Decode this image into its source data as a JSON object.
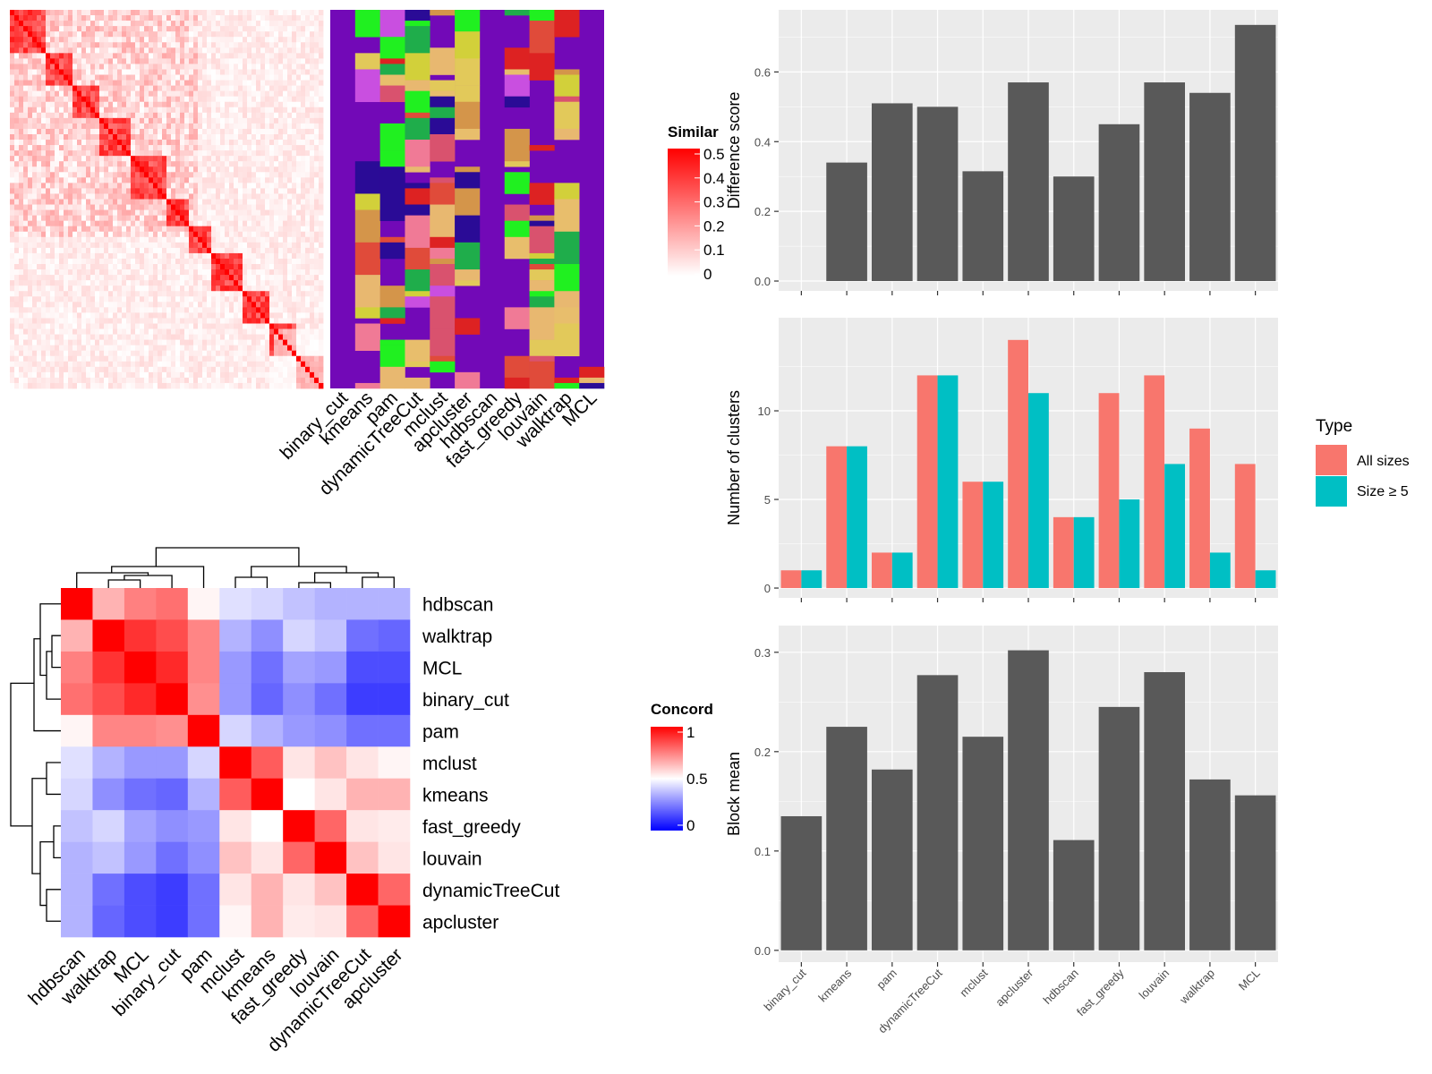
{
  "methods": [
    "binary_cut",
    "kmeans",
    "pam",
    "dynamicTreeCut",
    "mclust",
    "apcluster",
    "hdbscan",
    "fast_greedy",
    "louvain",
    "walktrap",
    "MCL"
  ],
  "similarity_legend": {
    "title": "Similar",
    "ticks": [
      "0.5",
      "0.4",
      "0.3",
      "0.2",
      "0.1",
      "0"
    ]
  },
  "concordance_legend": {
    "title": "Concord",
    "ticks": [
      "1",
      "0.5",
      "0"
    ]
  },
  "type_legend": {
    "title": "Type",
    "items": [
      {
        "label": "All sizes",
        "color": "#F8766D"
      },
      {
        "label": "Size ≥ 5",
        "color": "#00BFC4"
      }
    ]
  },
  "colors": {
    "bar": "#595959",
    "panel": "#EBEBEB",
    "grid": "#FFFFFF",
    "purple": "#7209B7",
    "red": "#FF0000",
    "blue": "#0000FF"
  },
  "concordance_order": [
    "hdbscan",
    "walktrap",
    "MCL",
    "binary_cut",
    "pam",
    "mclust",
    "kmeans",
    "fast_greedy",
    "louvain",
    "dynamicTreeCut",
    "apcluster"
  ],
  "chart_data": [
    {
      "type": "bar",
      "categories": [
        "binary_cut",
        "kmeans",
        "pam",
        "dynamicTreeCut",
        "mclust",
        "apcluster",
        "hdbscan",
        "fast_greedy",
        "louvain",
        "walktrap",
        "MCL"
      ],
      "values": [
        0,
        0.34,
        0.51,
        0.5,
        0.315,
        0.57,
        0.3,
        0.45,
        0.57,
        0.54,
        0.735
      ],
      "ylabel": "Difference score",
      "ylim": [
        0,
        0.75
      ],
      "yticks": [
        "0.0",
        "0.2",
        "0.4",
        "0.6"
      ],
      "grid": true
    },
    {
      "type": "bar",
      "categories": [
        "binary_cut",
        "kmeans",
        "pam",
        "dynamicTreeCut",
        "mclust",
        "apcluster",
        "hdbscan",
        "fast_greedy",
        "louvain",
        "walktrap",
        "MCL"
      ],
      "series": [
        {
          "name": "All sizes",
          "values": [
            1,
            8,
            2,
            12,
            6,
            14,
            4,
            11,
            12,
            9,
            7
          ]
        },
        {
          "name": "Size ≥ 5",
          "values": [
            1,
            8,
            2,
            12,
            6,
            11,
            4,
            5,
            7,
            2,
            1
          ]
        }
      ],
      "ylabel": "Number of clusters",
      "ylim": [
        0,
        14.7
      ],
      "yticks": [
        "0",
        "5",
        "10"
      ],
      "legend": "right",
      "grid": true
    },
    {
      "type": "bar",
      "categories": [
        "binary_cut",
        "kmeans",
        "pam",
        "dynamicTreeCut",
        "mclust",
        "apcluster",
        "hdbscan",
        "fast_greedy",
        "louvain",
        "walktrap",
        "MCL"
      ],
      "values": [
        0.135,
        0.225,
        0.182,
        0.277,
        0.215,
        0.302,
        0.111,
        0.245,
        0.28,
        0.172,
        0.156
      ],
      "ylabel": "Block mean",
      "ylim": [
        0,
        0.315
      ],
      "yticks": [
        "0.0",
        "0.1",
        "0.2",
        "0.3"
      ],
      "grid": true
    },
    {
      "type": "heatmap",
      "rows": [
        "hdbscan",
        "walktrap",
        "MCL",
        "binary_cut",
        "pam",
        "mclust",
        "kmeans",
        "fast_greedy",
        "louvain",
        "dynamicTreeCut",
        "apcluster"
      ],
      "columns": [
        "hdbscan",
        "walktrap",
        "MCL",
        "binary_cut",
        "pam",
        "mclust",
        "kmeans",
        "fast_greedy",
        "louvain",
        "dynamicTreeCut",
        "apcluster"
      ],
      "values": [
        [
          1.0,
          0.65,
          0.75,
          0.78,
          0.52,
          0.44,
          0.42,
          0.38,
          0.35,
          0.35,
          0.35
        ],
        [
          0.65,
          1.0,
          0.9,
          0.85,
          0.74,
          0.35,
          0.28,
          0.42,
          0.38,
          0.22,
          0.2
        ],
        [
          0.75,
          0.9,
          1.0,
          0.92,
          0.74,
          0.3,
          0.22,
          0.32,
          0.3,
          0.15,
          0.15
        ],
        [
          0.78,
          0.85,
          0.92,
          1.0,
          0.72,
          0.3,
          0.2,
          0.28,
          0.22,
          0.12,
          0.12
        ],
        [
          0.52,
          0.74,
          0.74,
          0.72,
          1.0,
          0.42,
          0.35,
          0.3,
          0.28,
          0.22,
          0.22
        ],
        [
          0.44,
          0.35,
          0.3,
          0.3,
          0.42,
          1.0,
          0.82,
          0.55,
          0.62,
          0.55,
          0.52
        ],
        [
          0.42,
          0.28,
          0.22,
          0.2,
          0.35,
          0.82,
          1.0,
          0.5,
          0.55,
          0.65,
          0.65
        ],
        [
          0.38,
          0.42,
          0.32,
          0.28,
          0.3,
          0.55,
          0.5,
          1.0,
          0.8,
          0.55,
          0.54
        ],
        [
          0.35,
          0.38,
          0.3,
          0.22,
          0.28,
          0.62,
          0.55,
          0.8,
          1.0,
          0.62,
          0.55
        ],
        [
          0.35,
          0.22,
          0.15,
          0.12,
          0.22,
          0.55,
          0.65,
          0.55,
          0.62,
          1.0,
          0.8
        ],
        [
          0.35,
          0.2,
          0.15,
          0.12,
          0.22,
          0.52,
          0.65,
          0.54,
          0.55,
          0.8,
          1.0
        ]
      ],
      "color_range": [
        0,
        1
      ]
    }
  ]
}
